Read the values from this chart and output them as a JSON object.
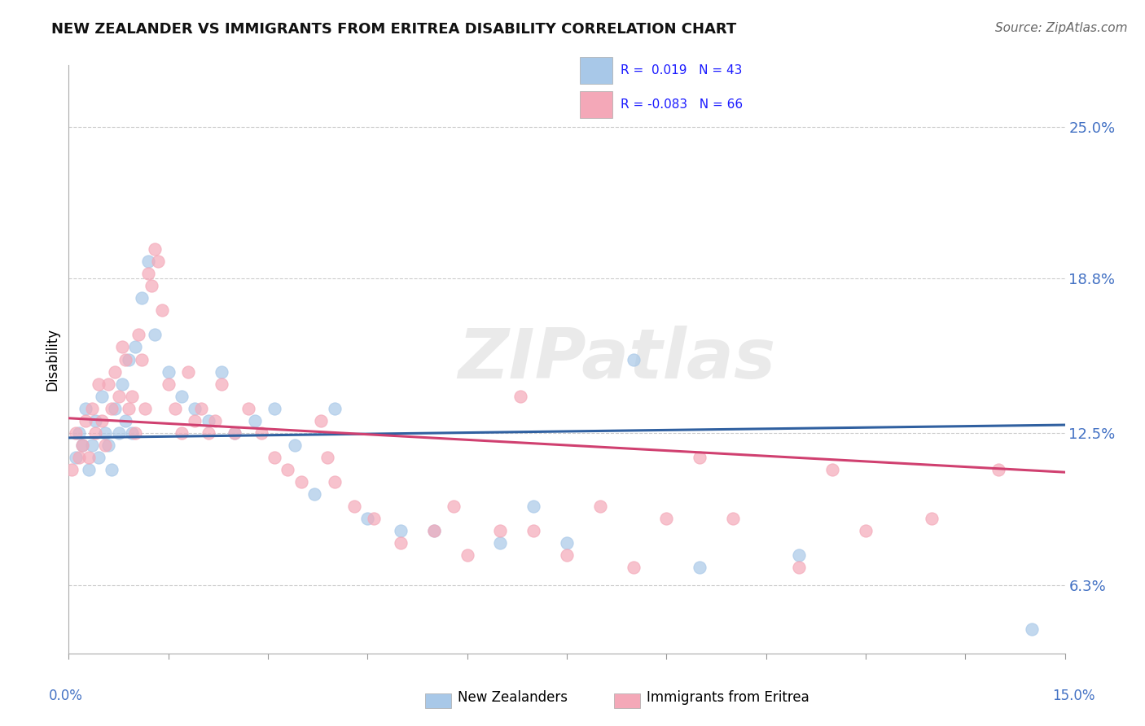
{
  "title": "NEW ZEALANDER VS IMMIGRANTS FROM ERITREA DISABILITY CORRELATION CHART",
  "source": "Source: ZipAtlas.com",
  "ylabel_ticks": [
    6.3,
    12.5,
    18.8,
    25.0
  ],
  "xlim": [
    0.0,
    15.0
  ],
  "ylim": [
    3.5,
    27.5
  ],
  "blue_R": 0.019,
  "blue_N": 43,
  "pink_R": -0.083,
  "pink_N": 66,
  "blue_color": "#a8c8e8",
  "pink_color": "#f4a8b8",
  "blue_line_color": "#3060a0",
  "pink_line_color": "#d04070",
  "watermark": "ZIPatlas",
  "blue_points_x": [
    0.1,
    0.15,
    0.2,
    0.25,
    0.3,
    0.35,
    0.4,
    0.45,
    0.5,
    0.55,
    0.6,
    0.65,
    0.7,
    0.75,
    0.8,
    0.85,
    0.9,
    0.95,
    1.0,
    1.1,
    1.2,
    1.3,
    1.5,
    1.7,
    1.9,
    2.1,
    2.3,
    2.5,
    2.8,
    3.1,
    3.4,
    3.7,
    4.0,
    4.5,
    5.0,
    5.5,
    6.5,
    7.0,
    7.5,
    8.5,
    9.5,
    11.0,
    14.5
  ],
  "blue_points_y": [
    11.5,
    12.5,
    12.0,
    13.5,
    11.0,
    12.0,
    13.0,
    11.5,
    14.0,
    12.5,
    12.0,
    11.0,
    13.5,
    12.5,
    14.5,
    13.0,
    15.5,
    12.5,
    16.0,
    18.0,
    19.5,
    16.5,
    15.0,
    14.0,
    13.5,
    13.0,
    15.0,
    12.5,
    13.0,
    13.5,
    12.0,
    10.0,
    13.5,
    9.0,
    8.5,
    8.5,
    8.0,
    9.5,
    8.0,
    15.5,
    7.0,
    7.5,
    4.5
  ],
  "pink_points_x": [
    0.05,
    0.1,
    0.15,
    0.2,
    0.25,
    0.3,
    0.35,
    0.4,
    0.45,
    0.5,
    0.55,
    0.6,
    0.65,
    0.7,
    0.75,
    0.8,
    0.85,
    0.9,
    0.95,
    1.0,
    1.05,
    1.1,
    1.15,
    1.2,
    1.25,
    1.3,
    1.35,
    1.4,
    1.5,
    1.6,
    1.7,
    1.8,
    1.9,
    2.0,
    2.1,
    2.2,
    2.3,
    2.5,
    2.7,
    2.9,
    3.1,
    3.3,
    3.5,
    3.8,
    4.0,
    4.3,
    4.6,
    5.0,
    5.5,
    6.0,
    6.5,
    7.0,
    7.5,
    8.0,
    9.0,
    10.0,
    11.0,
    12.0,
    13.0,
    14.0,
    3.9,
    5.8,
    6.8,
    8.5,
    9.5,
    11.5
  ],
  "pink_points_y": [
    11.0,
    12.5,
    11.5,
    12.0,
    13.0,
    11.5,
    13.5,
    12.5,
    14.5,
    13.0,
    12.0,
    14.5,
    13.5,
    15.0,
    14.0,
    16.0,
    15.5,
    13.5,
    14.0,
    12.5,
    16.5,
    15.5,
    13.5,
    19.0,
    18.5,
    20.0,
    19.5,
    17.5,
    14.5,
    13.5,
    12.5,
    15.0,
    13.0,
    13.5,
    12.5,
    13.0,
    14.5,
    12.5,
    13.5,
    12.5,
    11.5,
    11.0,
    10.5,
    13.0,
    10.5,
    9.5,
    9.0,
    8.0,
    8.5,
    7.5,
    8.5,
    8.5,
    7.5,
    9.5,
    9.0,
    9.0,
    7.0,
    8.5,
    9.0,
    11.0,
    11.5,
    9.5,
    14.0,
    7.0,
    11.5,
    11.0
  ]
}
